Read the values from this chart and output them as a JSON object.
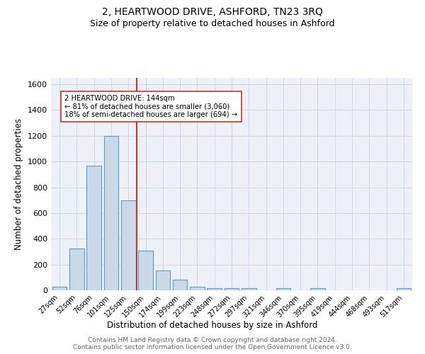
{
  "title": "2, HEARTWOOD DRIVE, ASHFORD, TN23 3RQ",
  "subtitle": "Size of property relative to detached houses in Ashford",
  "xlabel": "Distribution of detached houses by size in Ashford",
  "ylabel": "Number of detached properties",
  "bar_labels": [
    "27sqm",
    "52sqm",
    "76sqm",
    "101sqm",
    "125sqm",
    "150sqm",
    "174sqm",
    "199sqm",
    "223sqm",
    "248sqm",
    "272sqm",
    "297sqm",
    "321sqm",
    "346sqm",
    "370sqm",
    "395sqm",
    "419sqm",
    "444sqm",
    "468sqm",
    "493sqm",
    "517sqm"
  ],
  "bar_values": [
    28,
    325,
    970,
    1200,
    700,
    310,
    155,
    80,
    28,
    18,
    18,
    18,
    0,
    18,
    0,
    18,
    0,
    0,
    0,
    0,
    18
  ],
  "bar_color": "#c9d9e8",
  "bar_edge_color": "#5b9bd5",
  "vline_x": 4.5,
  "vline_color": "#c0392b",
  "annotation_text": "2 HEARTWOOD DRIVE: 144sqm\n← 81% of detached houses are smaller (3,060)\n18% of semi-detached houses are larger (694) →",
  "annotation_box_color": "#ffffff",
  "annotation_box_edge": "#c0392b",
  "ylim": [
    0,
    1650
  ],
  "yticks": [
    0,
    200,
    400,
    600,
    800,
    1000,
    1200,
    1400,
    1600
  ],
  "grid_color": "#d0d8e8",
  "bg_color": "#eef2f8",
  "footer_text": "Contains HM Land Registry data © Crown copyright and database right 2024.\nContains public sector information licensed under the Open Government Licence v3.0.",
  "title_fontsize": 10,
  "subtitle_fontsize": 9,
  "xlabel_fontsize": 8.5,
  "ylabel_fontsize": 8.5,
  "footer_fontsize": 6.5
}
